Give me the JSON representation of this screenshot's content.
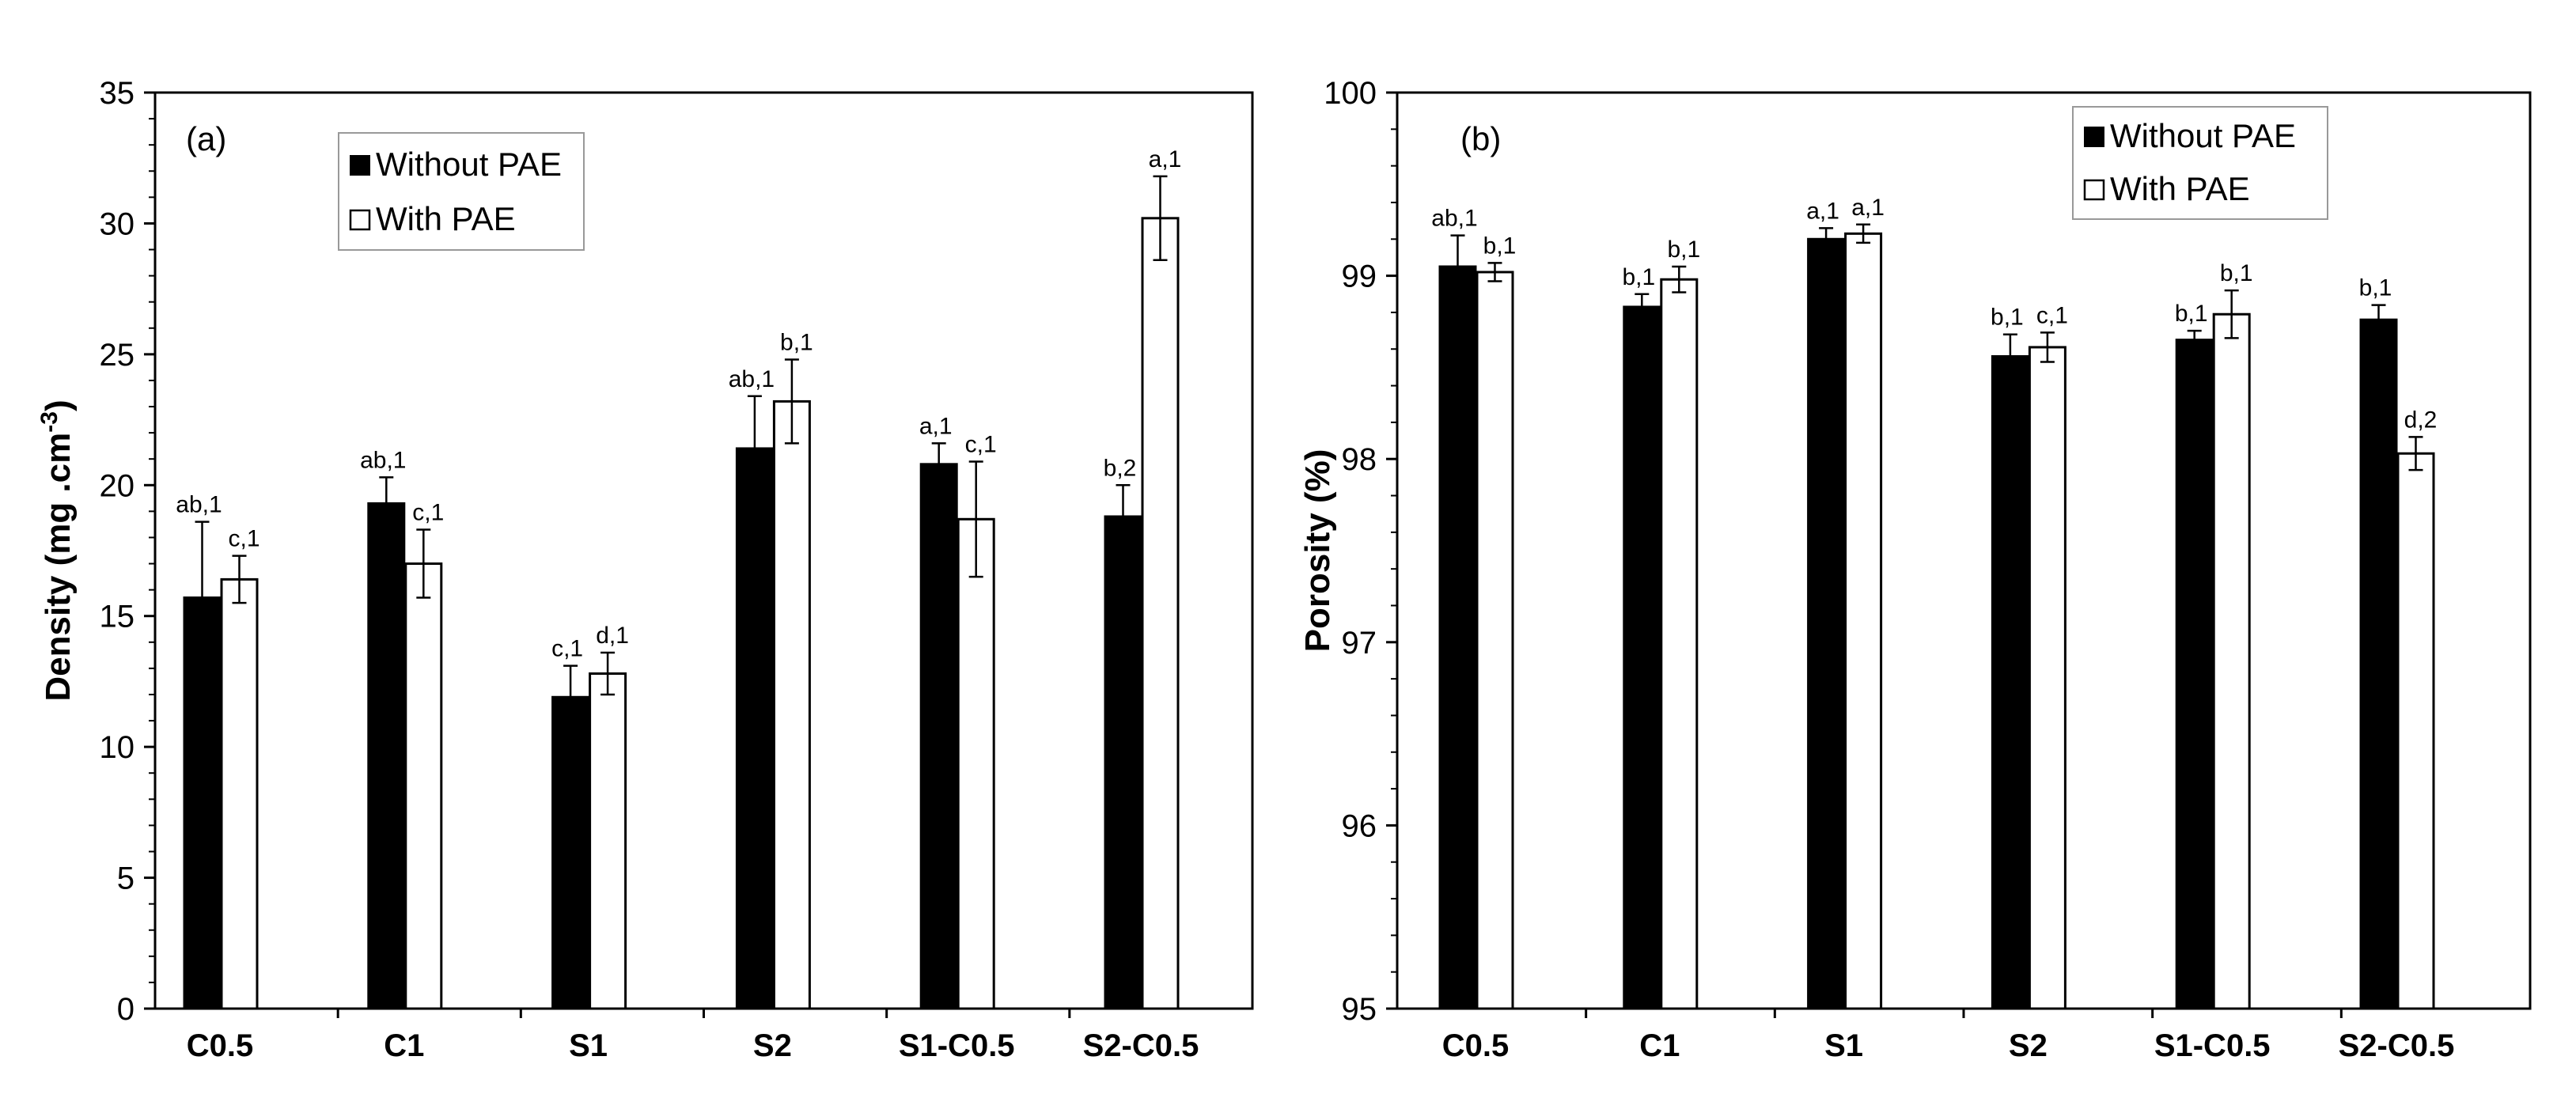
{
  "chart_data": [
    {
      "type": "bar",
      "panel_label": "(a)",
      "ylabel_main": "Density (mg .cm",
      "ylabel_sup": "-3",
      "ylabel_end": ")",
      "xlabel": "",
      "ylim": [
        0,
        35
      ],
      "ytick_values": [
        0,
        5,
        10,
        15,
        20,
        25,
        30,
        35
      ],
      "ytick_labels": [
        "0",
        "5",
        "10",
        "15",
        "20",
        "25",
        "30",
        "35"
      ],
      "grid": false,
      "legend_position": "top-center",
      "categories": [
        "C0.5",
        "C1",
        "S1",
        "S2",
        "S1-C0.5",
        "S2-C0.5"
      ],
      "series": [
        {
          "name": "Without PAE",
          "color": "#000000",
          "values": [
            15.7,
            19.3,
            11.9,
            21.4,
            20.8,
            18.8
          ],
          "errors": [
            2.9,
            1.0,
            1.2,
            2.0,
            0.8,
            1.2
          ],
          "labels": [
            "ab,1",
            "ab,1",
            "c,1",
            "ab,1",
            "a,1",
            "b,2"
          ]
        },
        {
          "name": "With PAE",
          "color": "#ffffff",
          "values": [
            16.4,
            17.0,
            12.8,
            23.2,
            18.7,
            30.2
          ],
          "errors": [
            0.9,
            1.3,
            0.8,
            1.6,
            2.2,
            1.6
          ],
          "labels": [
            "c,1",
            "c,1",
            "d,1",
            "b,1",
            "c,1",
            "a,1"
          ]
        }
      ]
    },
    {
      "type": "bar",
      "panel_label": "(b)",
      "ylabel_main": "Porosity (%)",
      "ylabel_sup": "",
      "ylabel_end": "",
      "xlabel": "",
      "ylim": [
        95,
        100
      ],
      "ytick_values": [
        95,
        96,
        97,
        98,
        99,
        100
      ],
      "ytick_labels": [
        "95",
        "96",
        "97",
        "98",
        "99",
        "100"
      ],
      "grid": false,
      "legend_position": "top-right",
      "categories": [
        "C0.5",
        "C1",
        "S1",
        "S2",
        "S1-C0.5",
        "S2-C0.5"
      ],
      "series": [
        {
          "name": "Without PAE",
          "color": "#000000",
          "values": [
            99.05,
            98.83,
            99.2,
            98.56,
            98.65,
            98.76
          ],
          "errors": [
            0.17,
            0.07,
            0.06,
            0.12,
            0.05,
            0.08
          ],
          "labels": [
            "ab,1",
            "b,1",
            "a,1",
            "b,1",
            "b,1",
            "b,1"
          ]
        },
        {
          "name": "With PAE",
          "color": "#ffffff",
          "values": [
            99.02,
            98.98,
            99.23,
            98.61,
            98.79,
            98.03
          ],
          "errors": [
            0.05,
            0.07,
            0.05,
            0.08,
            0.13,
            0.09
          ],
          "labels": [
            "b,1",
            "b,1",
            "a,1",
            "c,1",
            "b,1",
            "d,2"
          ]
        }
      ]
    }
  ]
}
